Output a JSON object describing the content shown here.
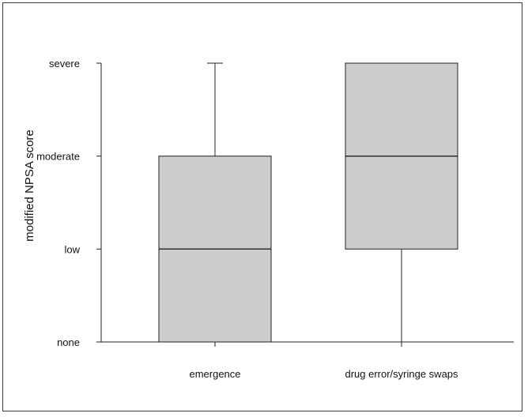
{
  "chart_data": {
    "type": "box",
    "ylabel": "modified NPSA score",
    "xlabel": "",
    "y_levels": [
      "none",
      "low",
      "moderate",
      "severe"
    ],
    "ylim": [
      0,
      3
    ],
    "categories": [
      "emergence",
      "drug error/syringe swaps"
    ],
    "boxes": [
      {
        "name": "emergence",
        "whisker_low": 0,
        "q1": 0,
        "median": 1,
        "q3": 2,
        "whisker_high": 3
      },
      {
        "name": "drug error/syringe swaps",
        "whisker_low": 0,
        "q1": 1,
        "median": 2,
        "q3": 3,
        "whisker_high": 3
      }
    ],
    "box_fill": "#cccccc",
    "line_color": "#222222",
    "grid": false
  }
}
